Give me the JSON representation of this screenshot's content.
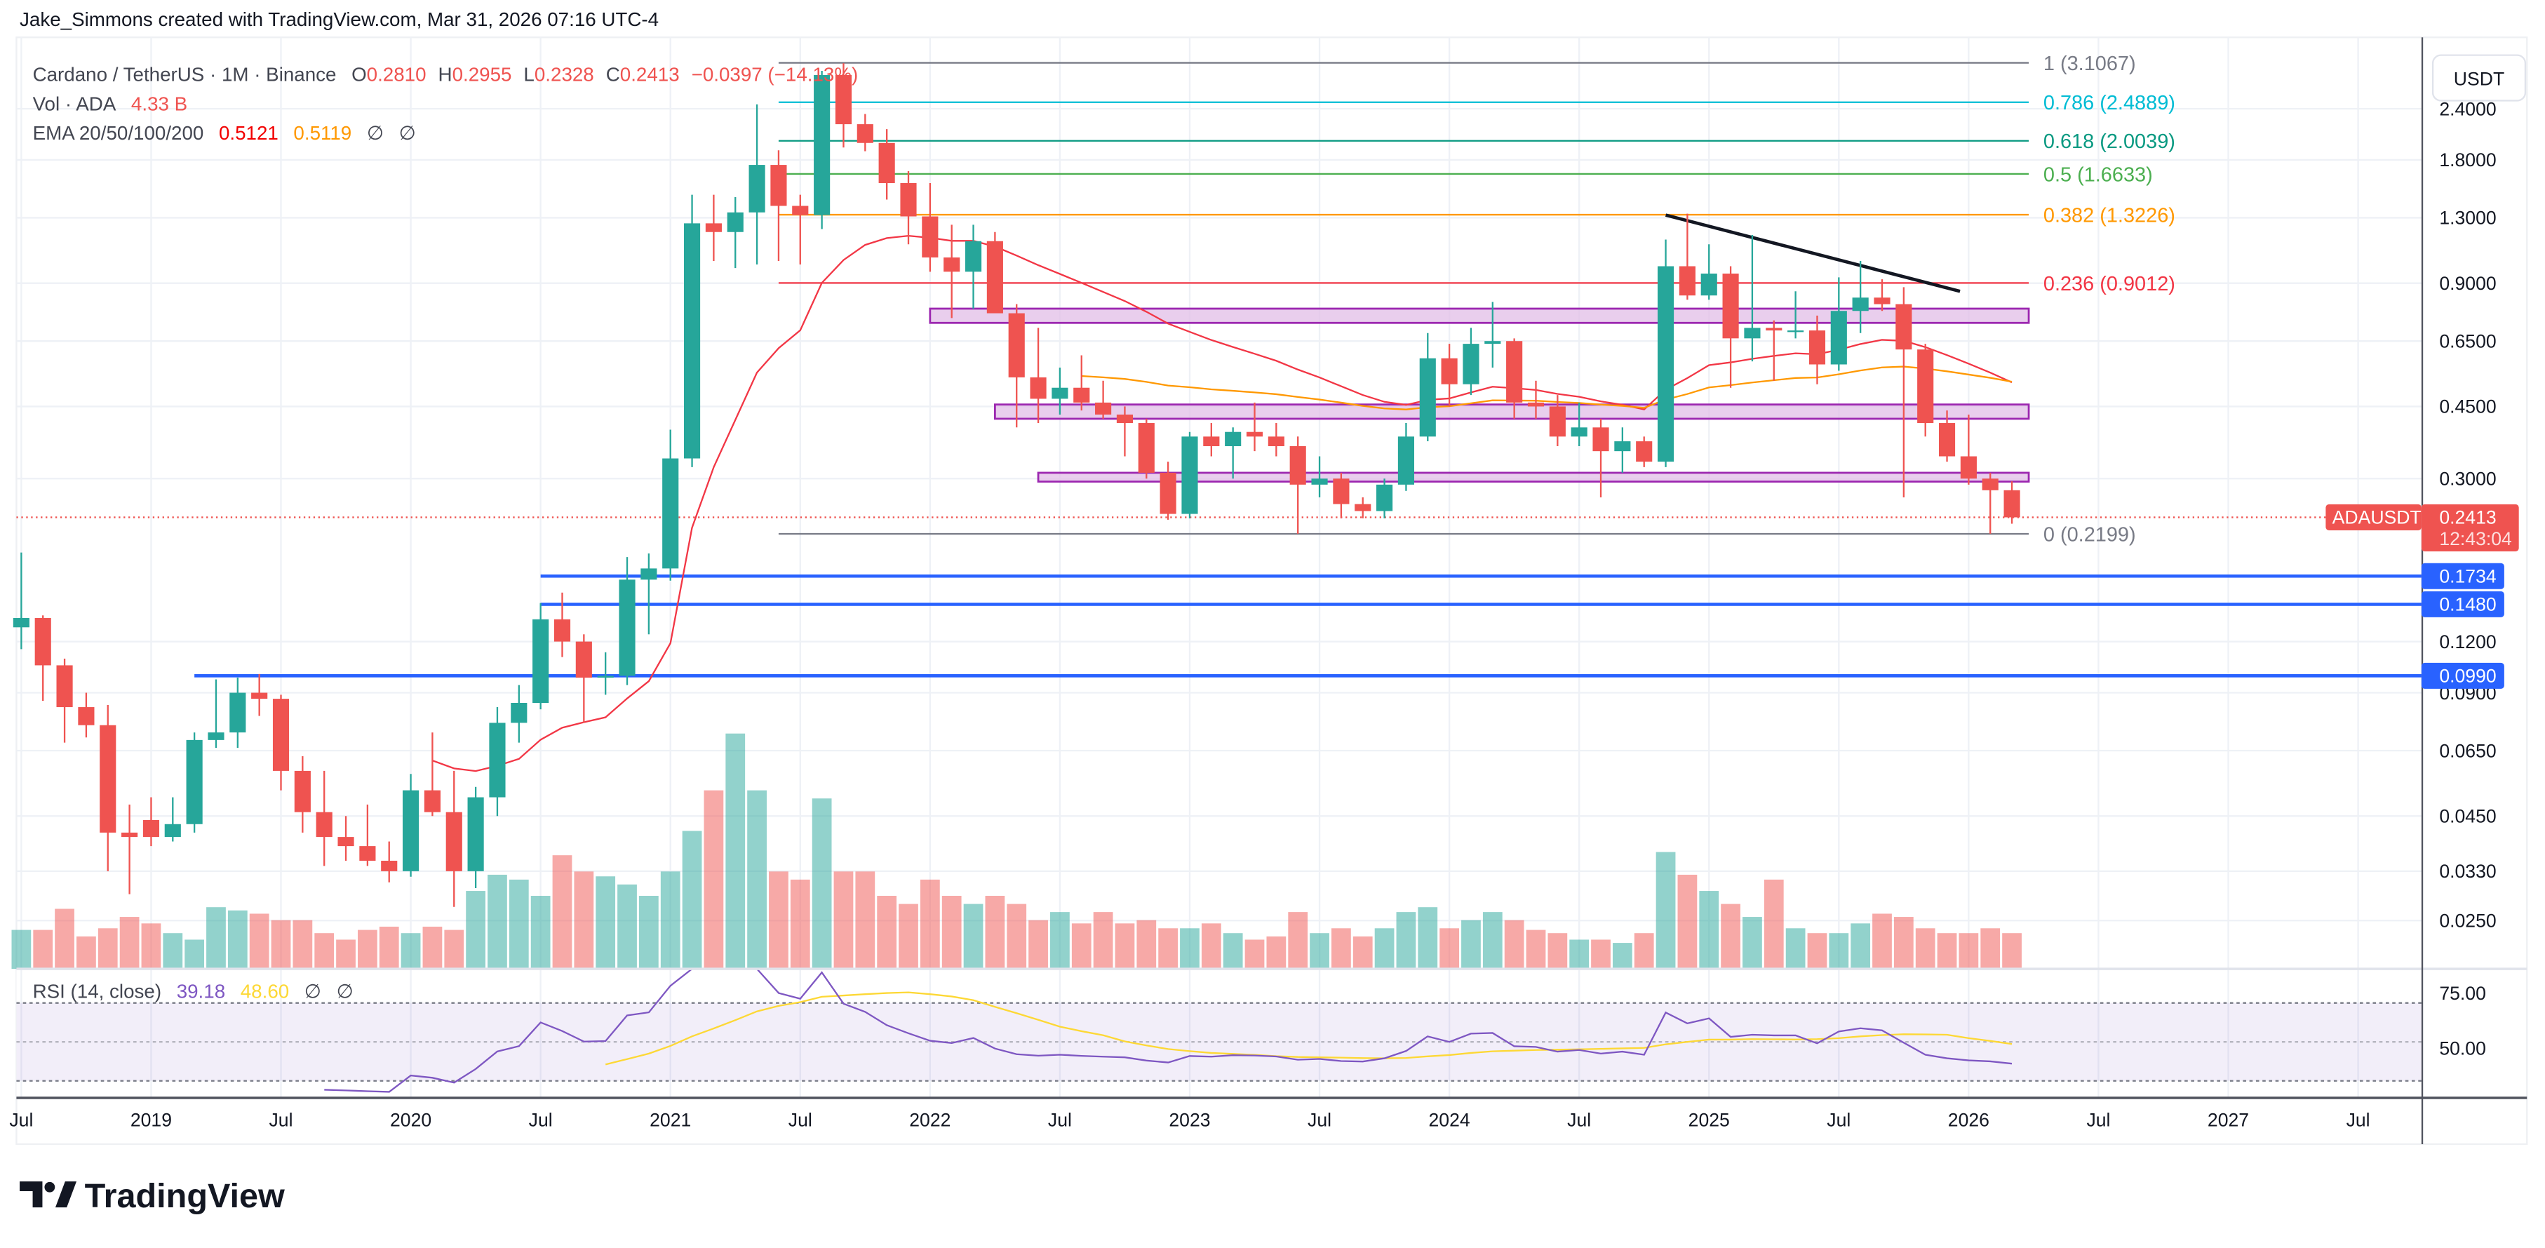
{
  "attribution": "Jake_Simmons created with TradingView.com, Mar 31, 2026 07:16 UTC-4",
  "legend": {
    "symbol": "Cardano / TetherUS · 1M · Binance",
    "o_label": "O",
    "o": "0.2810",
    "h_label": "H",
    "h": "0.2955",
    "l_label": "L",
    "l": "0.2328",
    "c_label": "C",
    "c": "0.2413",
    "change": "−0.0397 (−14.13%)",
    "vol_label": "Vol · ADA",
    "vol": "4.33 B",
    "ema_label": "EMA 20/50/100/200",
    "ema20": "0.5121",
    "ema50": "0.5119",
    "ema100": "∅",
    "ema200": "∅",
    "rsi_label": "RSI (14, close)",
    "rsi": "39.18",
    "rsi_ma": "48.60",
    "rsi_x1": "∅",
    "rsi_x2": "∅"
  },
  "currency_button": "USDT",
  "price_ticks": [
    "2.4000",
    "1.8000",
    "1.3000",
    "0.9000",
    "0.6500",
    "0.4500",
    "0.3000",
    "0.1200",
    "0.0900",
    "0.0650",
    "0.0450",
    "0.0330",
    "0.0250"
  ],
  "rsi_ticks": [
    "75.00",
    "50.00"
  ],
  "time_ticks": [
    "Jul",
    "2019",
    "Jul",
    "2020",
    "Jul",
    "2021",
    "Jul",
    "2022",
    "Jul",
    "2023",
    "Jul",
    "2024",
    "Jul",
    "2025",
    "Jul",
    "2026",
    "Jul",
    "2027",
    "Jul"
  ],
  "last_price": {
    "symbol": "ADAUSDT",
    "price": "0.2413",
    "countdown": "12:43:04",
    "color": "#ef5350"
  },
  "horizontal_lines": [
    {
      "price": 0.1734,
      "label": "0.1734",
      "start": "2020-07"
    },
    {
      "price": 0.148,
      "label": "0.1480",
      "start": "2020-07"
    },
    {
      "price": 0.099,
      "label": "0.0990",
      "start": "2019-03"
    }
  ],
  "fib_levels": [
    {
      "label": "1 (3.1067)",
      "price": 3.1067,
      "color": "#787b86"
    },
    {
      "label": "0.786 (2.4889)",
      "price": 2.4889,
      "color": "#00bcd4"
    },
    {
      "label": "0.618 (2.0039)",
      "price": 2.0039,
      "color": "#089981"
    },
    {
      "label": "0.5 (1.6633)",
      "price": 1.6633,
      "color": "#4caf50"
    },
    {
      "label": "0.382 (1.3226)",
      "price": 1.3226,
      "color": "#ff9800"
    },
    {
      "label": "0.236 (0.9012)",
      "price": 0.9012,
      "color": "#f23645"
    },
    {
      "label": "0 (0.2199)",
      "price": 0.2199,
      "color": "#787b86"
    }
  ],
  "zones": [
    {
      "top": 0.78,
      "bottom": 0.72,
      "start": "2022-01"
    },
    {
      "top": 0.455,
      "bottom": 0.42,
      "start": "2022-04"
    },
    {
      "top": 0.31,
      "bottom": 0.295,
      "start": "2022-06"
    }
  ],
  "trendline": {
    "from": {
      "date": "2024-11",
      "price": 1.32
    },
    "to": {
      "date": "2025-12",
      "price": 0.86
    }
  },
  "colors": {
    "up": "#26a69a",
    "down": "#ef5350",
    "ema20": "#f23645",
    "ema50": "#ff9800",
    "rsi": "#7e57c2",
    "rsi_ma": "#fdd835",
    "blue_line": "#2962ff",
    "zone_fill": "#e1bee7",
    "zone_stroke": "#9c27b0"
  },
  "chart_data": {
    "type": "candlestick",
    "symbol": "ADAUSDT",
    "interval": "1M",
    "scale": "log",
    "start_month": "2018-07",
    "ohlc": [
      [
        0.13,
        0.198,
        0.115,
        0.137
      ],
      [
        0.137,
        0.139,
        0.086,
        0.105
      ],
      [
        0.105,
        0.109,
        0.068,
        0.083
      ],
      [
        0.083,
        0.09,
        0.07,
        0.075
      ],
      [
        0.075,
        0.084,
        0.033,
        0.041
      ],
      [
        0.041,
        0.048,
        0.029,
        0.04
      ],
      [
        0.044,
        0.05,
        0.038,
        0.04
      ],
      [
        0.04,
        0.05,
        0.039,
        0.043
      ],
      [
        0.043,
        0.072,
        0.041,
        0.069
      ],
      [
        0.069,
        0.097,
        0.066,
        0.072
      ],
      [
        0.072,
        0.098,
        0.066,
        0.09
      ],
      [
        0.09,
        0.1,
        0.079,
        0.087
      ],
      [
        0.087,
        0.089,
        0.052,
        0.058
      ],
      [
        0.058,
        0.063,
        0.041,
        0.046
      ],
      [
        0.046,
        0.058,
        0.034,
        0.04
      ],
      [
        0.04,
        0.045,
        0.035,
        0.038
      ],
      [
        0.038,
        0.048,
        0.034,
        0.035
      ],
      [
        0.035,
        0.039,
        0.031,
        0.033
      ],
      [
        0.033,
        0.057,
        0.032,
        0.052
      ],
      [
        0.052,
        0.072,
        0.045,
        0.046
      ],
      [
        0.046,
        0.058,
        0.027,
        0.033
      ],
      [
        0.033,
        0.053,
        0.03,
        0.05
      ],
      [
        0.05,
        0.083,
        0.045,
        0.076
      ],
      [
        0.076,
        0.094,
        0.068,
        0.085
      ],
      [
        0.085,
        0.149,
        0.082,
        0.136
      ],
      [
        0.136,
        0.158,
        0.11,
        0.12
      ],
      [
        0.12,
        0.125,
        0.076,
        0.098
      ],
      [
        0.098,
        0.113,
        0.089,
        0.099
      ],
      [
        0.099,
        0.193,
        0.094,
        0.17
      ],
      [
        0.17,
        0.197,
        0.125,
        0.181
      ],
      [
        0.181,
        0.395,
        0.169,
        0.336
      ],
      [
        0.336,
        1.48,
        0.32,
        1.26
      ],
      [
        1.26,
        1.48,
        1.02,
        1.2
      ],
      [
        1.2,
        1.46,
        0.98,
        1.34
      ],
      [
        1.34,
        2.46,
        1.0,
        1.75
      ],
      [
        1.75,
        1.9,
        1.02,
        1.39
      ],
      [
        1.39,
        1.48,
        1.0,
        1.32
      ],
      [
        1.32,
        2.97,
        1.22,
        2.9
      ],
      [
        2.9,
        3.1,
        1.93,
        2.2
      ],
      [
        2.2,
        2.33,
        1.89,
        1.98
      ],
      [
        1.98,
        2.14,
        1.44,
        1.58
      ],
      [
        1.58,
        1.69,
        1.12,
        1.31
      ],
      [
        1.31,
        1.58,
        0.96,
        1.04
      ],
      [
        1.04,
        1.25,
        0.74,
        0.96
      ],
      [
        0.96,
        1.25,
        0.78,
        1.14
      ],
      [
        1.14,
        1.2,
        0.76,
        0.76
      ],
      [
        0.76,
        0.8,
        0.4,
        0.53
      ],
      [
        0.53,
        0.7,
        0.41,
        0.47
      ],
      [
        0.47,
        0.56,
        0.43,
        0.5
      ],
      [
        0.5,
        0.6,
        0.44,
        0.46
      ],
      [
        0.46,
        0.52,
        0.42,
        0.43
      ],
      [
        0.43,
        0.45,
        0.34,
        0.41
      ],
      [
        0.41,
        0.42,
        0.3,
        0.31
      ],
      [
        0.31,
        0.33,
        0.238,
        0.246
      ],
      [
        0.246,
        0.39,
        0.24,
        0.38
      ],
      [
        0.38,
        0.41,
        0.34,
        0.36
      ],
      [
        0.36,
        0.4,
        0.3,
        0.39
      ],
      [
        0.39,
        0.46,
        0.35,
        0.38
      ],
      [
        0.38,
        0.41,
        0.34,
        0.36
      ],
      [
        0.36,
        0.38,
        0.22,
        0.29
      ],
      [
        0.29,
        0.34,
        0.27,
        0.3
      ],
      [
        0.3,
        0.31,
        0.24,
        0.26
      ],
      [
        0.26,
        0.27,
        0.24,
        0.25
      ],
      [
        0.25,
        0.3,
        0.24,
        0.29
      ],
      [
        0.29,
        0.41,
        0.28,
        0.38
      ],
      [
        0.38,
        0.68,
        0.37,
        0.59
      ],
      [
        0.59,
        0.64,
        0.45,
        0.51
      ],
      [
        0.51,
        0.7,
        0.48,
        0.64
      ],
      [
        0.64,
        0.81,
        0.56,
        0.65
      ],
      [
        0.65,
        0.66,
        0.42,
        0.46
      ],
      [
        0.46,
        0.52,
        0.42,
        0.45
      ],
      [
        0.45,
        0.48,
        0.36,
        0.38
      ],
      [
        0.38,
        0.46,
        0.36,
        0.4
      ],
      [
        0.4,
        0.42,
        0.27,
        0.35
      ],
      [
        0.35,
        0.4,
        0.31,
        0.37
      ],
      [
        0.37,
        0.38,
        0.32,
        0.33
      ],
      [
        0.33,
        1.15,
        0.32,
        0.99
      ],
      [
        0.99,
        1.33,
        0.82,
        0.84
      ],
      [
        0.84,
        1.12,
        0.82,
        0.95
      ],
      [
        0.95,
        0.99,
        0.5,
        0.66
      ],
      [
        0.66,
        1.18,
        0.58,
        0.7
      ],
      [
        0.7,
        0.73,
        0.52,
        0.69
      ],
      [
        0.69,
        0.86,
        0.66,
        0.69
      ],
      [
        0.69,
        0.75,
        0.51,
        0.57
      ],
      [
        0.57,
        0.93,
        0.55,
        0.77
      ],
      [
        0.77,
        1.02,
        0.68,
        0.83
      ],
      [
        0.83,
        0.92,
        0.77,
        0.8
      ],
      [
        0.8,
        0.88,
        0.27,
        0.62
      ],
      [
        0.62,
        0.64,
        0.38,
        0.41
      ],
      [
        0.41,
        0.44,
        0.33,
        0.34
      ],
      [
        0.34,
        0.43,
        0.29,
        0.3
      ],
      [
        0.3,
        0.31,
        0.22,
        0.281
      ],
      [
        0.281,
        0.2955,
        0.2328,
        0.2413
      ]
    ],
    "volume": [
      24,
      24,
      37,
      20,
      25,
      32,
      28,
      22,
      18,
      38,
      36,
      34,
      30,
      30,
      22,
      18,
      24,
      26,
      22,
      26,
      24,
      48,
      58,
      55,
      45,
      70,
      60,
      57,
      52,
      45,
      60,
      85,
      110,
      145,
      110,
      60,
      55,
      105,
      60,
      60,
      45,
      40,
      55,
      45,
      40,
      45,
      40,
      30,
      35,
      28,
      35,
      28,
      30,
      25,
      25,
      28,
      22,
      18,
      20,
      35,
      22,
      25,
      20,
      25,
      35,
      38,
      25,
      30,
      35,
      30,
      24,
      22,
      18,
      18,
      16,
      22,
      72,
      58,
      48,
      40,
      32,
      55,
      25,
      22,
      22,
      28,
      34,
      32,
      25,
      22,
      22,
      25,
      22
    ],
    "y_range": [
      0.025,
      3.2
    ],
    "x_range": [
      "2018-07",
      "2027-09"
    ]
  },
  "logo_text": "TradingView"
}
